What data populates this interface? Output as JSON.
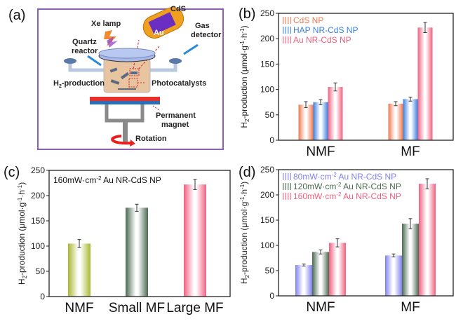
{
  "diagram": {
    "panel_label": "(a)",
    "labels": {
      "xe_lamp": "Xe lamp",
      "cds": "CdS",
      "au": "Au",
      "gas": "Gas",
      "detector": "detector",
      "quartz": "Quartz",
      "reactor": "reactor",
      "h2_main": "H",
      "h2_sub": "2",
      "h2_rest": "-production",
      "photocatalysts": "Photocatalysts",
      "permanent": "Permanent",
      "magnet": "magnet",
      "rotation": "Rotation"
    },
    "colors": {
      "frame": "#8a5fb5",
      "magnet_red": "#e8302a",
      "magnet_blue": "#2d6db5",
      "au": "#6a2fc0",
      "cds": "#f0a020"
    }
  },
  "ylabel": {
    "main": "H",
    "sub": "2",
    "rest": "-production (μmol·g",
    "sup1": "-1",
    "mid": "·h",
    "sup2": "-1",
    "end": ")"
  },
  "chart_data": [
    {
      "panel_label": "(b)",
      "type": "bar",
      "categories": [
        "NMF",
        "MF"
      ],
      "ylim": [
        0,
        250
      ],
      "yticks": [
        "0",
        "50",
        "100",
        "150",
        "200",
        "250"
      ],
      "series": [
        {
          "name": "CdS NP",
          "color": "#f07850",
          "values": [
            70,
            72
          ],
          "errors": [
            6,
            4
          ]
        },
        {
          "name": "HAP NR-CdS NP",
          "color": "#3a80e0",
          "values": [
            75,
            81
          ],
          "errors": [
            5,
            4
          ]
        },
        {
          "name": "Au NR-CdS NP",
          "color": "#f06080",
          "values": [
            105,
            222
          ],
          "errors": [
            8,
            10
          ]
        }
      ],
      "legend": "top-left"
    },
    {
      "panel_label": "(c)",
      "type": "bar",
      "annotation": {
        "pre": "160mW·cm",
        "sup": "-2",
        "post": " Au NR-CdS NP"
      },
      "categories": [
        "NMF",
        "Small MF",
        "Large MF"
      ],
      "ylim": [
        0,
        250
      ],
      "yticks": [
        "0",
        "50",
        "100",
        "150",
        "200",
        "250"
      ],
      "series": [
        {
          "name": "160mW·cm-2 Au NR-CdS NP",
          "colors": [
            "#a8b830",
            "#4a6a50",
            "#f06080"
          ],
          "values": [
            105,
            176,
            222
          ],
          "errors": [
            8,
            7,
            10
          ]
        }
      ]
    },
    {
      "panel_label": "(d)",
      "type": "bar",
      "categories": [
        "NMF",
        "MF"
      ],
      "ylim": [
        0,
        250
      ],
      "yticks": [
        "0",
        "50",
        "100",
        "150",
        "200",
        "250"
      ],
      "series": [
        {
          "name": "80mW·cm-2 Au NR-CdS NP",
          "label": {
            "pre": "80mW·cm",
            "sup": "-2",
            "post": " Au NR-CdS NP"
          },
          "color": "#8080f0",
          "values": [
            61,
            80
          ],
          "errors": [
            2,
            3
          ]
        },
        {
          "name": "120mW·cm-2 Au NR-CdS NP",
          "label": {
            "pre": "120mW·cm",
            "sup": "-2",
            "post": " Au NR-CdS NP"
          },
          "color": "#4a6a50",
          "values": [
            87,
            143
          ],
          "errors": [
            4,
            10
          ]
        },
        {
          "name": "160mW·cm-2 Au NR-CdS NP",
          "label": {
            "pre": "160mW·cm",
            "sup": "-2",
            "post": " Au NR-CdS NP"
          },
          "color": "#f06080",
          "values": [
            105,
            222
          ],
          "errors": [
            8,
            10
          ]
        }
      ],
      "legend": "top-left"
    }
  ]
}
